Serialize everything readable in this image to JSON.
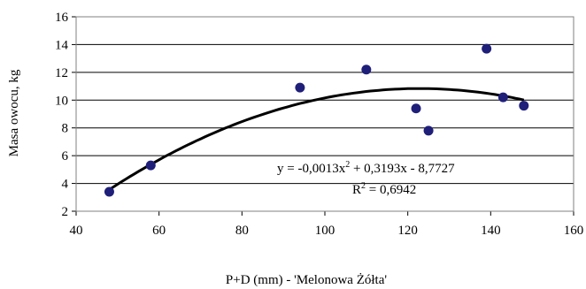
{
  "chart_data": {
    "type": "scatter",
    "xlabel": "P+D (mm) - 'Melonowa Żółta'",
    "ylabel": "Masa owocu, kg",
    "xlim": [
      40,
      160
    ],
    "ylim": [
      2,
      16
    ],
    "x_ticks": [
      "40",
      "60",
      "80",
      "100",
      "120",
      "140",
      "160"
    ],
    "y_ticks": [
      "2",
      "4",
      "6",
      "8",
      "10",
      "12",
      "14",
      "16"
    ],
    "grid": "horizontal",
    "points": [
      {
        "x": 48,
        "y": 3.4
      },
      {
        "x": 58,
        "y": 5.3
      },
      {
        "x": 94,
        "y": 10.9
      },
      {
        "x": 110,
        "y": 12.2
      },
      {
        "x": 122,
        "y": 9.4
      },
      {
        "x": 125,
        "y": 7.8
      },
      {
        "x": 139,
        "y": 13.7
      },
      {
        "x": 143,
        "y": 10.2
      },
      {
        "x": 148,
        "y": 9.6
      }
    ],
    "trendline": {
      "type": "polynomial",
      "coefficients": [
        -0.0013,
        0.3193,
        -8.7727
      ],
      "x_range": [
        48,
        148
      ],
      "equation_parts": [
        "y = -0,0013x",
        "2",
        " + 0,3193x - 8,7727"
      ],
      "r2_parts": [
        "R",
        "2",
        " = 0,6942"
      ]
    },
    "colors": {
      "marker": "#1f1f7a",
      "trendline": "#000000",
      "grid": "#000000",
      "plot_border": "#808080"
    }
  }
}
